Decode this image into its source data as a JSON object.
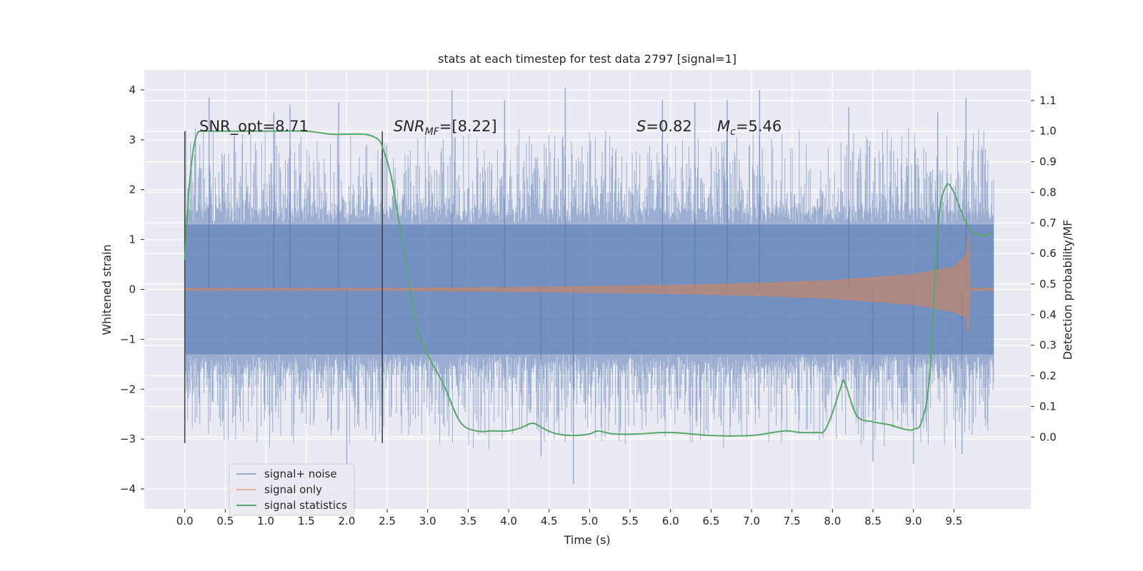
{
  "chart_data": {
    "type": "line",
    "title": "stats at each timestep for test data 2797 [signal=1]",
    "xlabel": "Time (s)",
    "ylabel": "Whitened strain",
    "ylabel_right": "Detection probability/MF",
    "xlim": [
      -0.5,
      10.45
    ],
    "ylim": [
      -4.4,
      4.4
    ],
    "ylim_right": [
      -0.235,
      1.2
    ],
    "x_ticks": [
      0.0,
      0.5,
      1.0,
      1.5,
      2.0,
      2.5,
      3.0,
      3.5,
      4.0,
      4.5,
      5.0,
      5.5,
      6.0,
      6.5,
      7.0,
      7.5,
      8.0,
      8.5,
      9.0,
      9.5
    ],
    "x_tick_labels": [
      "0.0",
      "0.5",
      "1.0",
      "1.5",
      "2.0",
      "2.5",
      "3.0",
      "3.5",
      "4.0",
      "4.5",
      "5.0",
      "5.5",
      "6.0",
      "6.5",
      "7.0",
      "7.5",
      "8.0",
      "8.5",
      "9.0",
      "9.5"
    ],
    "y_ticks": [
      -4,
      -3,
      -2,
      -1,
      0,
      1,
      2,
      3,
      4
    ],
    "y_tick_labels": [
      "−4",
      "−3",
      "−2",
      "−1",
      "0",
      "1",
      "2",
      "3",
      "4"
    ],
    "y_right_ticks": [
      0.0,
      0.1,
      0.2,
      0.3,
      0.4,
      0.5,
      0.6,
      0.7,
      0.8,
      0.9,
      1.0,
      1.1
    ],
    "y_right_tick_labels": [
      "0.0",
      "0.1",
      "0.2",
      "0.3",
      "0.4",
      "0.5",
      "0.6",
      "0.7",
      "0.8",
      "0.9",
      "1.0",
      "1.1"
    ],
    "grid": true,
    "legend_position": "lower-left",
    "colors": {
      "background": "#eaeaf2",
      "grid": "#ffffff",
      "noise": "#4c72b0",
      "signal": "#dd8452",
      "statistics": "#55a868",
      "marker": "#444444"
    },
    "series": [
      {
        "name": "signal+ noise",
        "axis": "left",
        "description_free": true,
        "x_range": [
          0.0,
          9.99
        ],
        "envelope_typical": [
          -1.3,
          1.3
        ],
        "envelope_peaks": [
          -3.9,
          4.05
        ],
        "spikes": [
          {
            "x": 0.3,
            "y": 3.85
          },
          {
            "x": 1.1,
            "y": 3.55
          },
          {
            "x": 1.3,
            "y": 3.7
          },
          {
            "x": 1.9,
            "y": 3.75
          },
          {
            "x": 3.3,
            "y": 4.0
          },
          {
            "x": 3.95,
            "y": 3.8
          },
          {
            "x": 4.7,
            "y": 4.05
          },
          {
            "x": 5.9,
            "y": 3.8
          },
          {
            "x": 6.3,
            "y": 3.75
          },
          {
            "x": 6.7,
            "y": 3.8
          },
          {
            "x": 7.1,
            "y": 4.0
          },
          {
            "x": 8.2,
            "y": 3.65
          },
          {
            "x": 9.3,
            "y": 3.55
          },
          {
            "x": 9.65,
            "y": 3.85
          },
          {
            "x": 2.0,
            "y": -3.5
          },
          {
            "x": 4.8,
            "y": -3.9
          },
          {
            "x": 8.5,
            "y": -3.45
          },
          {
            "x": 9.0,
            "y": -3.5
          },
          {
            "x": 9.6,
            "y": -3.3
          },
          {
            "x": 4.4,
            "y": -3.35
          }
        ]
      },
      {
        "name": "signal only",
        "axis": "left",
        "x_range": [
          0.0,
          9.99
        ],
        "amplitude_points": [
          [
            0.0,
            0.02
          ],
          [
            2.5,
            0.02
          ],
          [
            4.0,
            0.04
          ],
          [
            5.0,
            0.06
          ],
          [
            6.0,
            0.08
          ],
          [
            7.0,
            0.12
          ],
          [
            8.0,
            0.18
          ],
          [
            9.0,
            0.3
          ],
          [
            9.5,
            0.45
          ],
          [
            9.65,
            0.7
          ],
          [
            9.68,
            1.1
          ],
          [
            9.7,
            0.02
          ],
          [
            9.99,
            0.02
          ]
        ]
      },
      {
        "name": "signal statistics",
        "axis": "right",
        "x": [
          0.0,
          0.05,
          0.1,
          0.15,
          0.2,
          0.3,
          0.5,
          1.0,
          1.5,
          1.8,
          2.0,
          2.2,
          2.3,
          2.4,
          2.45,
          2.55,
          2.7,
          2.85,
          3.0,
          3.2,
          3.4,
          3.6,
          3.8,
          4.0,
          4.15,
          4.3,
          4.45,
          4.6,
          4.8,
          5.0,
          5.1,
          5.3,
          5.6,
          6.0,
          6.5,
          7.0,
          7.4,
          7.6,
          7.8,
          7.9,
          8.0,
          8.1,
          8.15,
          8.3,
          8.5,
          8.7,
          8.9,
          9.0,
          9.1,
          9.2,
          9.3,
          9.4,
          9.5,
          9.6,
          9.7,
          9.8,
          9.9,
          9.97
        ],
        "y": [
          0.58,
          0.8,
          0.93,
          0.99,
          1.0,
          1.0,
          1.0,
          1.0,
          1.0,
          0.99,
          0.99,
          0.99,
          0.985,
          0.97,
          0.94,
          0.85,
          0.62,
          0.38,
          0.27,
          0.17,
          0.05,
          0.02,
          0.02,
          0.02,
          0.03,
          0.045,
          0.025,
          0.01,
          0.005,
          0.01,
          0.02,
          0.01,
          0.01,
          0.015,
          0.005,
          0.005,
          0.02,
          0.015,
          0.015,
          0.02,
          0.08,
          0.16,
          0.18,
          0.07,
          0.05,
          0.04,
          0.025,
          0.025,
          0.05,
          0.2,
          0.68,
          0.82,
          0.8,
          0.73,
          0.68,
          0.66,
          0.66,
          0.67
        ]
      }
    ],
    "vertical_markers": [
      {
        "x": 0.0,
        "y_from": -3.08,
        "y_to": 3.17
      },
      {
        "x": 2.44,
        "y_from": -3.08,
        "y_to": 3.17
      }
    ],
    "annotations": {
      "snr_opt": "SNR_opt=8.71",
      "snr_mf_label": "SNR",
      "snr_mf_sub": "MF",
      "snr_mf_value": "=[8.22]",
      "s_label": "S",
      "s_value": "=0.82",
      "mc_label": "M",
      "mc_sub": "c",
      "mc_value": "=5.46"
    },
    "legend": [
      "signal+ noise",
      "signal only",
      "signal statistics"
    ]
  }
}
